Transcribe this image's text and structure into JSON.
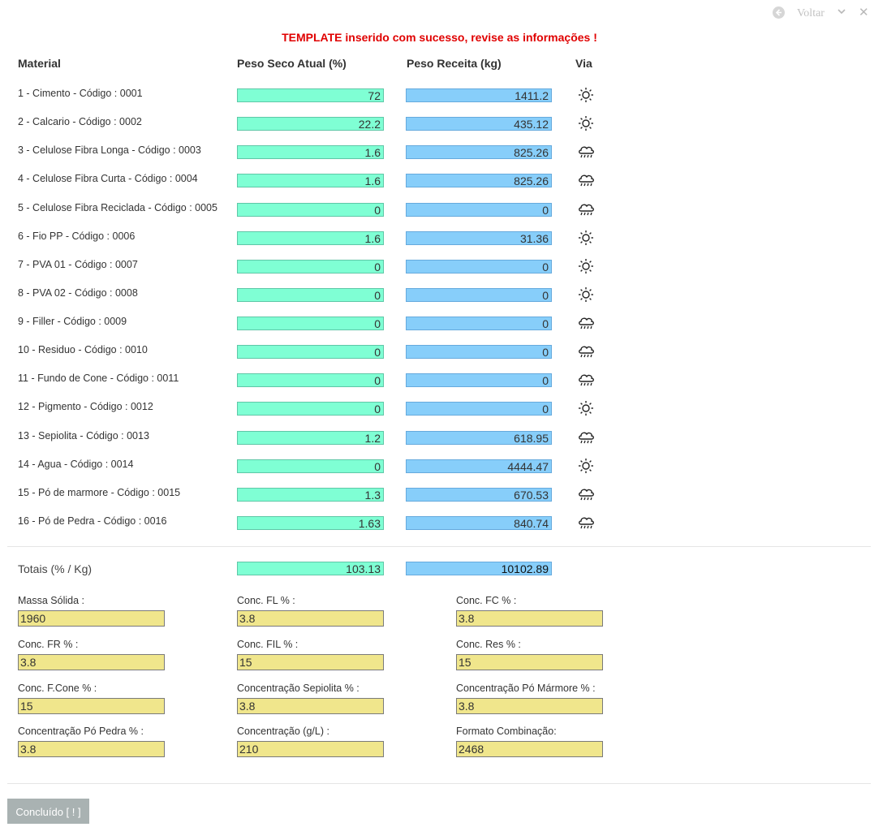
{
  "topbar": {
    "back_label": "Voltar"
  },
  "message": "TEMPLATE inserido com sucesso, revise as informações !",
  "headers": {
    "material": "Material",
    "peso_seco": "Peso Seco Atual (%)",
    "peso_receita": "Peso Receita (kg)",
    "via": "Via"
  },
  "rows": [
    {
      "label": "1 - Cimento - Código : 0001",
      "seco": "72",
      "receita": "1411.2",
      "via": "sun-icon"
    },
    {
      "label": "2 - Calcario - Código : 0002",
      "seco": "22.2",
      "receita": "435.12",
      "via": "sun-icon"
    },
    {
      "label": "3 - Celulose Fibra Longa - Código : 0003",
      "seco": "1.6",
      "receita": "825.26",
      "via": "rain-icon"
    },
    {
      "label": "4 - Celulose Fibra Curta - Código : 0004",
      "seco": "1.6",
      "receita": "825.26",
      "via": "rain-icon"
    },
    {
      "label": "5 - Celulose Fibra Reciclada - Código : 0005",
      "seco": "0",
      "receita": "0",
      "via": "rain-icon"
    },
    {
      "label": "6 - Fio PP - Código : 0006",
      "seco": "1.6",
      "receita": "31.36",
      "via": "sun-icon"
    },
    {
      "label": "7 - PVA 01 - Código : 0007",
      "seco": "0",
      "receita": "0",
      "via": "sun-icon"
    },
    {
      "label": "8 - PVA 02 - Código : 0008",
      "seco": "0",
      "receita": "0",
      "via": "sun-icon"
    },
    {
      "label": "9 - Filler - Código : 0009",
      "seco": "0",
      "receita": "0",
      "via": "rain-icon"
    },
    {
      "label": "10 - Residuo - Código : 0010",
      "seco": "0",
      "receita": "0",
      "via": "rain-icon"
    },
    {
      "label": "11 - Fundo de Cone - Código : 0011",
      "seco": "0",
      "receita": "0",
      "via": "rain-icon"
    },
    {
      "label": "12 - Pigmento - Código : 0012",
      "seco": "0",
      "receita": "0",
      "via": "sun-icon"
    },
    {
      "label": "13 - Sepiolita - Código : 0013",
      "seco": "1.2",
      "receita": "618.95",
      "via": "rain-icon"
    },
    {
      "label": "14 - Agua - Código : 0014",
      "seco": "0",
      "receita": "4444.47",
      "via": "sun-icon"
    },
    {
      "label": "15 - Pó de marmore - Código : 0015",
      "seco": "1.3",
      "receita": "670.53",
      "via": "rain-icon"
    },
    {
      "label": "16 - Pó de Pedra - Código : 0016",
      "seco": "1.63",
      "receita": "840.74",
      "via": "rain-icon"
    }
  ],
  "totals": {
    "label": "Totais (% / Kg)",
    "seco": "103.13",
    "receita": "10102.89"
  },
  "fields": [
    {
      "label": "Massa Sólida :",
      "value": "1960"
    },
    {
      "label": "Conc. FL % :",
      "value": "3.8"
    },
    {
      "label": "Conc. FC % :",
      "value": "3.8"
    },
    {
      "label": "Conc. FR % :",
      "value": "3.8"
    },
    {
      "label": "Conc. FIL % :",
      "value": "15"
    },
    {
      "label": "Conc. Res % :",
      "value": "15"
    },
    {
      "label": "Conc. F.Cone % :",
      "value": "15"
    },
    {
      "label": "Concentração Sepiolita % :",
      "value": "3.8"
    },
    {
      "label": "Concentração Pó Mármore % :",
      "value": "3.8"
    },
    {
      "label": "Concentração Pó Pedra % :",
      "value": "3.8"
    },
    {
      "label": "Concentração (g/L) :",
      "value": "210"
    },
    {
      "label": "Formato Combinação:",
      "value": "2468"
    }
  ],
  "done_button": "Concluído [ ! ]",
  "colors": {
    "message": "#e00000",
    "green_field": "#7fffd4",
    "blue_field": "#87cefa",
    "yellow_field": "#f0e68c",
    "button": "#a9b2b2"
  }
}
